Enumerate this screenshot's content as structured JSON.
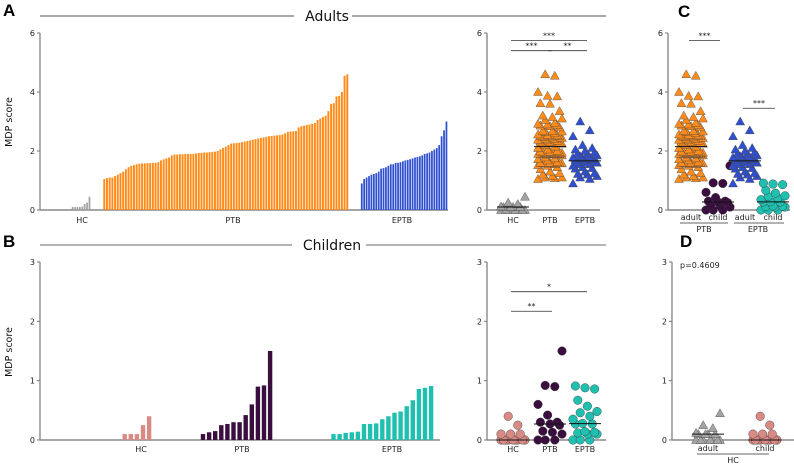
{
  "labels": {
    "panel_A": "A",
    "panel_B": "B",
    "panel_C": "C",
    "panel_D": "D",
    "adults_title": "Adults",
    "children_title": "Children",
    "y_label": "MDP score",
    "p_value": "p=0.4609"
  },
  "chart_data": {
    "type": "bar+scatter",
    "ylabel": "MDP score",
    "colors": {
      "adult_HC": "#a3a3a3",
      "adult_PTB": "#ff8c1a",
      "adult_EPTB": "#2f4fd0",
      "child_HC": "#d98a85",
      "child_PTB": "#3a0f40",
      "child_EPTB": "#1fc0b0"
    },
    "series": {
      "adult_HC": [
        0,
        0,
        0,
        0,
        0,
        0,
        0,
        0.1,
        0.1,
        0.1,
        0.1,
        0.12,
        0.2,
        0.25,
        0.45
      ],
      "adult_PTB": [
        1.05,
        1.08,
        1.1,
        1.1,
        1.15,
        1.2,
        1.25,
        1.3,
        1.38,
        1.45,
        1.5,
        1.52,
        1.55,
        1.57,
        1.58,
        1.58,
        1.59,
        1.59,
        1.6,
        1.6,
        1.62,
        1.68,
        1.72,
        1.75,
        1.78,
        1.85,
        1.88,
        1.88,
        1.89,
        1.89,
        1.9,
        1.9,
        1.9,
        1.9,
        1.92,
        1.93,
        1.94,
        1.95,
        1.95,
        1.96,
        1.97,
        1.98,
        2.0,
        2.05,
        2.1,
        2.15,
        2.2,
        2.25,
        2.26,
        2.27,
        2.28,
        2.3,
        2.32,
        2.34,
        2.36,
        2.38,
        2.4,
        2.42,
        2.44,
        2.46,
        2.48,
        2.5,
        2.51,
        2.52,
        2.53,
        2.54,
        2.56,
        2.6,
        2.65,
        2.66,
        2.67,
        2.68,
        2.8,
        2.84,
        2.86,
        2.88,
        2.9,
        2.92,
        2.95,
        3.05,
        3.1,
        3.15,
        3.2,
        3.35,
        3.6,
        3.62,
        3.85,
        3.87,
        4.0,
        4.55,
        4.6
      ],
      "adult_EPTB": [
        0.9,
        1.05,
        1.1,
        1.15,
        1.2,
        1.22,
        1.25,
        1.3,
        1.4,
        1.42,
        1.45,
        1.5,
        1.55,
        1.55,
        1.6,
        1.6,
        1.62,
        1.65,
        1.68,
        1.7,
        1.72,
        1.75,
        1.78,
        1.8,
        1.82,
        1.85,
        1.9,
        1.92,
        1.95,
        2.0,
        2.05,
        2.1,
        2.2,
        2.5,
        2.7,
        3.0
      ],
      "child_HC": [
        0,
        0,
        0,
        0,
        0,
        0,
        0,
        0,
        0,
        0.1,
        0.1,
        0.1,
        0.25,
        0.4
      ],
      "child_PTB": [
        0,
        0,
        0,
        0.1,
        0.13,
        0.15,
        0.25,
        0.27,
        0.3,
        0.3,
        0.42,
        0.6,
        0.9,
        0.92,
        1.5
      ],
      "child_EPTB": [
        0,
        0,
        0,
        0.1,
        0.1,
        0.12,
        0.13,
        0.14,
        0.27,
        0.27,
        0.28,
        0.35,
        0.4,
        0.46,
        0.48,
        0.57,
        0.67,
        0.86,
        0.88,
        0.91
      ]
    },
    "panels": [
      {
        "id": "A-bar",
        "type": "bar",
        "ylim": [
          0,
          6
        ],
        "yticks": [
          "0",
          "2",
          "4",
          "6"
        ],
        "categories": [
          "HC",
          "PTB",
          "EPTB"
        ],
        "series": [
          "adult_HC",
          "adult_PTB",
          "adult_EPTB"
        ]
      },
      {
        "id": "A-scatter",
        "type": "scatter",
        "ylim": [
          0,
          6
        ],
        "yticks": [
          "0",
          "2",
          "4",
          "6"
        ],
        "categories": [
          "HC",
          "PTB",
          "EPTB"
        ],
        "series": [
          "adult_HC",
          "adult_PTB",
          "adult_EPTB"
        ],
        "significance": [
          {
            "from": 0,
            "to": 2,
            "label": "***",
            "y": 5.75
          },
          {
            "from": 0,
            "to": 1,
            "label": "***",
            "y": 5.4
          },
          {
            "from": 1,
            "to": 2,
            "label": "**",
            "y": 5.4
          }
        ]
      },
      {
        "id": "C",
        "type": "scatter",
        "ylim": [
          0,
          6
        ],
        "yticks": [
          "0",
          "2",
          "4",
          "6"
        ],
        "categories": [
          "adult",
          "child",
          "adult",
          "child"
        ],
        "groups": [
          "PTB",
          "EPTB"
        ],
        "series": [
          "adult_PTB",
          "child_PTB",
          "adult_EPTB",
          "child_EPTB"
        ],
        "significance": [
          {
            "from": 0,
            "to": 1,
            "label": "***",
            "y": 5.75
          },
          {
            "from": 2,
            "to": 3,
            "label": "***",
            "y": 3.45
          }
        ]
      },
      {
        "id": "B-bar",
        "type": "bar",
        "ylim": [
          0,
          3
        ],
        "yticks": [
          "0",
          "1",
          "2",
          "3"
        ],
        "categories": [
          "HC",
          "PTB",
          "EPTB"
        ],
        "series": [
          "child_HC",
          "child_PTB",
          "child_EPTB"
        ]
      },
      {
        "id": "B-scatter",
        "type": "scatter",
        "ylim": [
          0,
          3
        ],
        "yticks": [
          "0",
          "1",
          "2",
          "3"
        ],
        "categories": [
          "HC",
          "PTB",
          "EPTB"
        ],
        "series": [
          "child_HC",
          "child_PTB",
          "child_EPTB"
        ],
        "significance": [
          {
            "from": 0,
            "to": 2,
            "label": "*",
            "y": 2.5
          },
          {
            "from": 0,
            "to": 1,
            "label": "**",
            "y": 2.17
          }
        ]
      },
      {
        "id": "D",
        "type": "scatter",
        "ylim": [
          0,
          3
        ],
        "yticks": [
          "0",
          "1",
          "2",
          "3"
        ],
        "categories": [
          "adult",
          "child"
        ],
        "groups": [
          "HC"
        ],
        "series": [
          "adult_HC",
          "child_HC"
        ],
        "significance": []
      }
    ]
  }
}
